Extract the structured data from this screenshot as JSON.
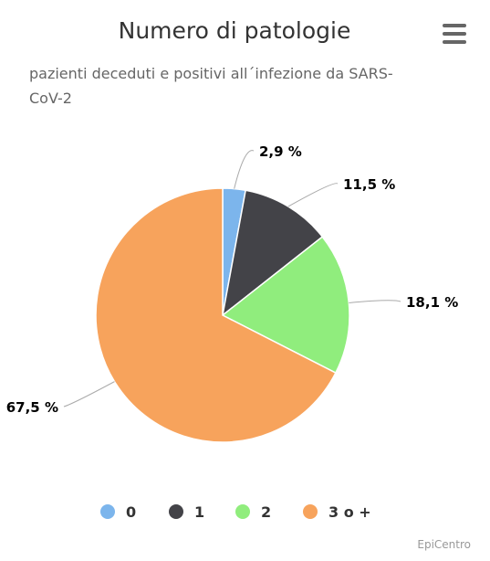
{
  "chart_data": {
    "type": "pie",
    "title": "Numero di patologie",
    "subtitle_lines": [
      "pazienti deceduti e positivi all´infezione da SARS-",
      "CoV-2"
    ],
    "categories": [
      "0",
      "1",
      "2",
      "3 o +"
    ],
    "values": [
      2.9,
      11.5,
      18.1,
      67.5
    ],
    "data_labels": [
      "2,9 %",
      "11,5 %",
      "18,1 %",
      "67,5 %"
    ],
    "colors": [
      "#7cb5ec",
      "#434348",
      "#90ed7d",
      "#f7a35c"
    ],
    "legend_position": "bottom",
    "credit": "EpiCentro"
  },
  "menu": {
    "icon": "hamburger-menu-icon"
  }
}
